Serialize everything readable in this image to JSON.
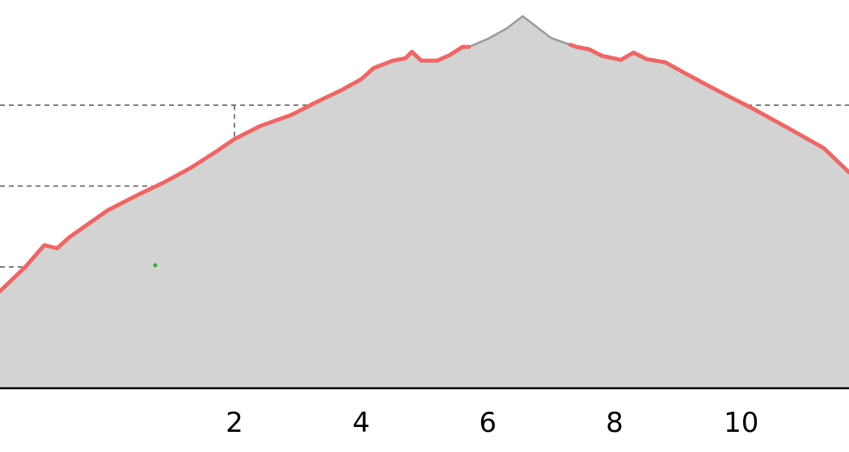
{
  "chart_data": {
    "type": "area",
    "title": "",
    "xlabel": "",
    "ylabel": "",
    "xlim": [
      -1.7,
      11.7
    ],
    "ylim": [
      0,
      4.8
    ],
    "grid": true,
    "x_ticks": [
      2,
      4,
      6,
      8,
      10
    ],
    "x_tick_labels": [
      "2",
      "4",
      "6",
      "8",
      "10"
    ],
    "y_gridlines": [
      0.5,
      1.5,
      2.5,
      3.5
    ],
    "colors": {
      "area_fill": "#d3d3d3",
      "profile_line": "#999999",
      "highlight_line": "#ee6666",
      "marker": "#33aa33",
      "grid": "#555555",
      "axis": "#000000"
    },
    "series": [
      {
        "values": [
          [
            -1.7,
            1.2
          ],
          [
            -1.3,
            1.5
          ],
          [
            -1.0,
            1.77
          ],
          [
            -0.8,
            1.73
          ],
          [
            -0.6,
            1.87
          ],
          [
            0.0,
            2.2
          ],
          [
            0.5,
            2.4
          ],
          [
            0.9,
            2.55
          ],
          [
            1.3,
            2.72
          ],
          [
            1.7,
            2.92
          ],
          [
            2.0,
            3.08
          ],
          [
            2.4,
            3.24
          ],
          [
            2.9,
            3.38
          ],
          [
            3.3,
            3.54
          ],
          [
            3.7,
            3.69
          ],
          [
            4.0,
            3.82
          ],
          [
            4.2,
            3.96
          ],
          [
            4.5,
            4.05
          ],
          [
            4.7,
            4.08
          ],
          [
            4.8,
            4.16
          ],
          [
            4.95,
            4.05
          ],
          [
            5.2,
            4.05
          ],
          [
            5.4,
            4.12
          ],
          [
            5.6,
            4.22
          ],
          [
            5.7,
            4.22
          ],
          [
            6.0,
            4.32
          ],
          [
            6.3,
            4.45
          ],
          [
            6.55,
            4.6
          ],
          [
            6.8,
            4.45
          ],
          [
            7.0,
            4.33
          ],
          [
            7.4,
            4.22
          ],
          [
            7.6,
            4.19
          ],
          [
            7.8,
            4.11
          ],
          [
            8.1,
            4.06
          ],
          [
            8.3,
            4.15
          ],
          [
            8.5,
            4.07
          ],
          [
            8.8,
            4.03
          ],
          [
            9.1,
            3.9
          ],
          [
            9.6,
            3.69
          ],
          [
            10.2,
            3.45
          ],
          [
            10.8,
            3.19
          ],
          [
            11.3,
            2.97
          ],
          [
            11.7,
            2.67
          ]
        ]
      }
    ],
    "highlighted_ranges": [
      [
        -1.7,
        5.7
      ],
      [
        7.3,
        11.7
      ]
    ],
    "marker": [
      0.75,
      1.52
    ]
  }
}
